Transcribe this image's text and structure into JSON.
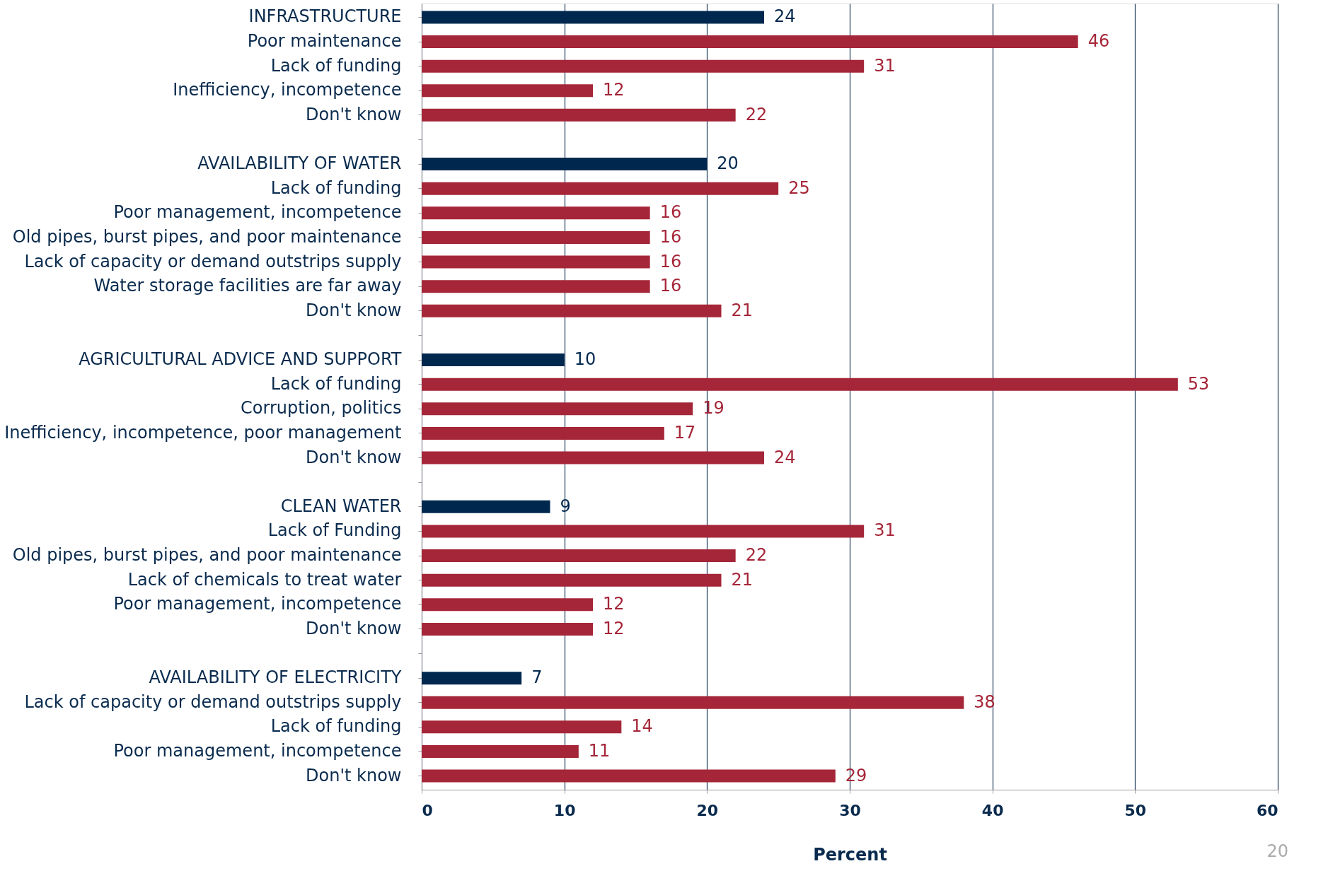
{
  "chart_data": {
    "type": "bar",
    "orientation": "horizontal",
    "xlabel": "Percent",
    "categories": [
      "INFRASTRUCTURE",
      "Poor maintenance",
      "Lack of funding",
      "Inefficiency, incompetence",
      "Don't know",
      null,
      "AVAILABILITY OF WATER",
      "Lack of funding",
      "Poor management, incompetence",
      "Old pipes, burst pipes, and poor maintenance",
      "Lack of capacity or demand outstrips supply",
      "Water storage facilities are far away",
      "Don't know",
      null,
      "AGRICULTURAL ADVICE AND SUPPORT",
      "Lack of funding",
      "Corruption, politics",
      "Inefficiency, incompetence, poor management",
      "Don't know",
      null,
      "CLEAN WATER",
      "Lack of Funding",
      "Old pipes, burst pipes, and poor maintenance",
      "Lack of chemicals to treat water",
      "Poor management, incompetence",
      "Don't know",
      null,
      "AVAILABILITY OF ELECTRICITY",
      "Lack of capacity or demand outstrips supply",
      "Lack of funding",
      "Poor management, incompetence",
      "Don't know"
    ],
    "values": [
      24,
      46,
      31,
      12,
      22,
      null,
      20,
      25,
      16,
      16,
      16,
      16,
      21,
      null,
      10,
      53,
      19,
      17,
      24,
      null,
      9,
      31,
      22,
      21,
      12,
      12,
      null,
      7,
      38,
      14,
      11,
      29
    ],
    "colors": [
      "#00284f",
      "#a52638",
      "#a52638",
      "#a52638",
      "#a52638",
      null,
      "#00284f",
      "#a52638",
      "#a52638",
      "#a52638",
      "#a52638",
      "#a52638",
      "#a52638",
      null,
      "#00284f",
      "#a52638",
      "#a52638",
      "#a52638",
      "#a52638",
      null,
      "#00284f",
      "#a52638",
      "#a52638",
      "#a52638",
      "#a52638",
      "#a52638",
      null,
      "#00284f",
      "#a52638",
      "#a52638",
      "#a52638",
      "#a52638"
    ],
    "xlim": [
      0,
      60
    ],
    "xticks": [
      0,
      10,
      20,
      30,
      40,
      50,
      60
    ],
    "grid": "x",
    "data_labels": true,
    "annotations": [
      "20"
    ]
  }
}
